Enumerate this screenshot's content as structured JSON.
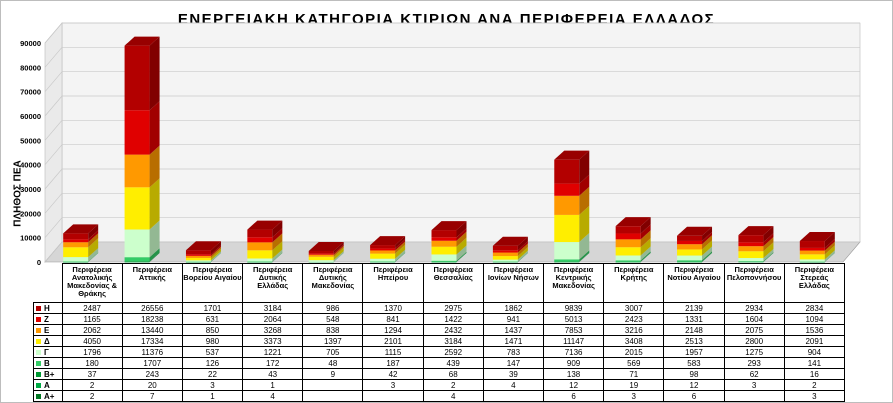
{
  "chart_data": {
    "type": "bar",
    "stacked": true,
    "title": "ΕΝΕΡΓΕΙΑΚΗ  ΚΑΤΗΓΟΡΙΑ  ΚΤΙΡΙΩΝ  ΑΝΑ  ΠΕΡΙΦΕΡΕΙΑ  ΕΛΛΑΔΟΣ",
    "ylabel": "ΠΛΗΘΟΣ ΠΕΑ",
    "ylim": [
      0,
      90000
    ],
    "yticks": [
      "0",
      "10000",
      "20000",
      "30000",
      "40000",
      "50000",
      "60000",
      "70000",
      "80000",
      "90000"
    ],
    "grid": true,
    "categories": [
      "Περιφέρεια Ανατολικής Μακεδονίας & Θράκης",
      "Περιφέρεια Αττικής",
      "Περιφέρεια Βορείου Αιγαίου",
      "Περιφέρεια Δυτικής Ελλάδας",
      "Περιφέρεια Δυτικής Μακεδονίας",
      "Περιφέρεια Ηπείρου",
      "Περιφέρεια Θεσσαλίας",
      "Περιφέρεια Ιονίων Νήσων",
      "Περιφέρεια Κεντρικής Μακεδονίας",
      "Περιφέρεια Κρήτης",
      "Περιφέρεια Νοτίου Αιγαίου",
      "Περιφέρεια Πελοποννήσου",
      "Περιφέρεια Στερεάς Ελλάδας"
    ],
    "series": [
      {
        "name": "Η",
        "color": "#b30000",
        "values": [
          "2487",
          "26556",
          "1701",
          "3184",
          "986",
          "1370",
          "2975",
          "1862",
          "9839",
          "3007",
          "2139",
          "2934",
          "2834"
        ]
      },
      {
        "name": "Ζ",
        "color": "#e00000",
        "values": [
          "1165",
          "18238",
          "631",
          "2064",
          "548",
          "841",
          "1422",
          "941",
          "5013",
          "2423",
          "1331",
          "1604",
          "1094"
        ]
      },
      {
        "name": "Ε",
        "color": "#ff9900",
        "values": [
          "2062",
          "13440",
          "850",
          "3268",
          "838",
          "1294",
          "2432",
          "1437",
          "7853",
          "3216",
          "2148",
          "2075",
          "1536"
        ]
      },
      {
        "name": "Δ",
        "color": "#ffee00",
        "values": [
          "4050",
          "17334",
          "980",
          "3373",
          "1397",
          "2101",
          "3184",
          "1471",
          "11147",
          "3408",
          "2513",
          "2800",
          "2091"
        ]
      },
      {
        "name": "Γ",
        "color": "#ccffcc",
        "values": [
          "1796",
          "11376",
          "537",
          "1221",
          "705",
          "1115",
          "2592",
          "783",
          "7136",
          "2015",
          "1957",
          "1275",
          "904"
        ]
      },
      {
        "name": "Β",
        "color": "#33cc66",
        "values": [
          "180",
          "1707",
          "126",
          "172",
          "48",
          "187",
          "439",
          "147",
          "909",
          "569",
          "583",
          "293",
          "141"
        ]
      },
      {
        "name": "Β+",
        "color": "#009933",
        "values": [
          "37",
          "243",
          "22",
          "43",
          "9",
          "42",
          "68",
          "39",
          "138",
          "71",
          "98",
          "62",
          "16"
        ]
      },
      {
        "name": "Α",
        "color": "#00aa44",
        "values": [
          "2",
          "20",
          "3",
          "1",
          "",
          "3",
          "2",
          "4",
          "12",
          "19",
          "12",
          "3",
          "2"
        ]
      },
      {
        "name": "Α+",
        "color": "#007722",
        "values": [
          "2",
          "7",
          "1",
          "4",
          "",
          "",
          "4",
          "",
          "6",
          "3",
          "6",
          "",
          "3"
        ]
      }
    ]
  }
}
